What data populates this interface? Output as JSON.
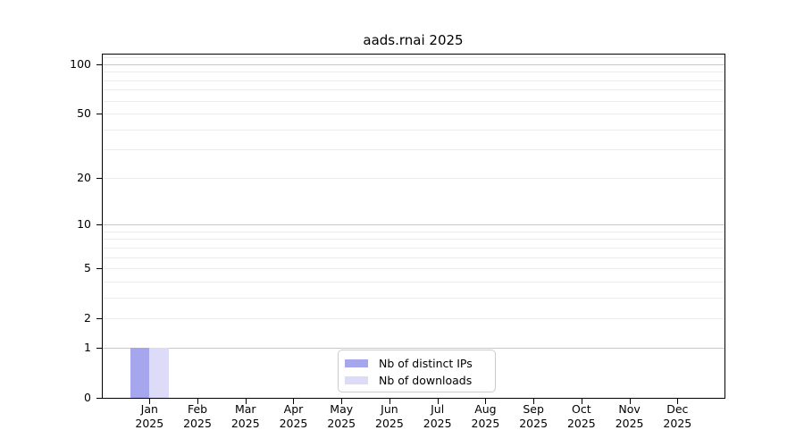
{
  "title": "aads.rnai 2025",
  "colors": {
    "distinct_ips": "#a6a6ef",
    "downloads": "#dcdcf8",
    "grid_major": "#c8c8c8",
    "grid_minor": "#ededed",
    "axis": "#000000",
    "legend_border": "#cccccc",
    "text": "#000000",
    "background": "#ffffff"
  },
  "chart_data": {
    "type": "bar",
    "title": "aads.rnai 2025",
    "categories": [
      "Jan",
      "Feb",
      "Mar",
      "Apr",
      "May",
      "Jun",
      "Jul",
      "Aug",
      "Sep",
      "Oct",
      "Nov",
      "Dec"
    ],
    "category_year": "2025",
    "series": [
      {
        "name": "Nb of distinct IPs",
        "color": "#a6a6ef",
        "values": [
          1,
          0,
          0,
          0,
          0,
          0,
          0,
          0,
          0,
          0,
          0,
          0
        ]
      },
      {
        "name": "Nb of downloads",
        "color": "#dcdcf8",
        "values": [
          1,
          0,
          0,
          0,
          0,
          0,
          0,
          0,
          0,
          0,
          0,
          0
        ]
      }
    ],
    "yscale": "log(y+1)",
    "ylim": [
      0,
      116
    ],
    "y_tick_labels": [
      0,
      1,
      2,
      5,
      10,
      20,
      50,
      100
    ],
    "y_major_grid": [
      1,
      10,
      100
    ],
    "y_minor_grid": [
      2,
      3,
      4,
      5,
      6,
      7,
      8,
      9,
      20,
      30,
      40,
      50,
      60,
      70,
      80,
      90,
      110
    ],
    "grid": true,
    "legend_position": "lower center",
    "legend_labels": [
      "Nb of distinct IPs",
      "Nb of downloads"
    ]
  }
}
